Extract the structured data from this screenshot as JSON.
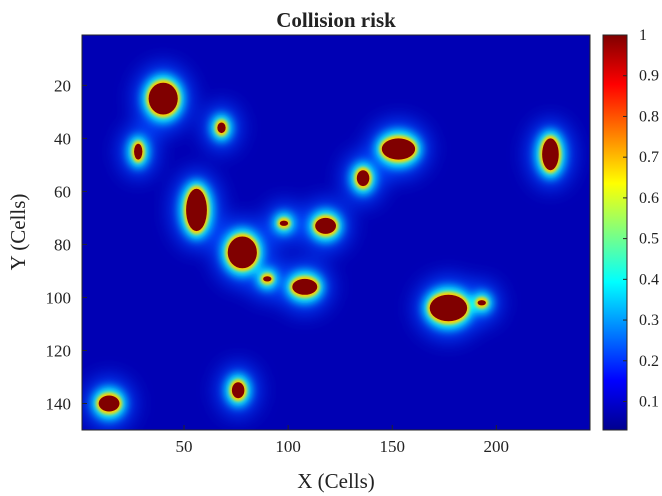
{
  "chart_data": {
    "type": "heatmap",
    "title": "Collision risk",
    "xlabel": "X (Cells)",
    "ylabel": "Y (Cells)",
    "xlim": [
      1,
      245
    ],
    "ylim": [
      1,
      150
    ],
    "y_direction": "reversed",
    "x_ticks": [
      50,
      100,
      150,
      200
    ],
    "x_tick_labels": [
      "50",
      "100",
      "150",
      "200"
    ],
    "y_ticks": [
      20,
      40,
      60,
      80,
      100,
      120,
      140
    ],
    "y_tick_labels": [
      "20",
      "40",
      "60",
      "80",
      "100",
      "120",
      "140"
    ],
    "colorbar": {
      "colormap": "jet",
      "range": [
        0.03,
        1
      ],
      "ticks": [
        0.1,
        0.2,
        0.3,
        0.4,
        0.5,
        0.6,
        0.7,
        0.8,
        0.9,
        1
      ],
      "tick_labels": [
        "0.1",
        "0.2",
        "0.3",
        "0.4",
        "0.5",
        "0.6",
        "0.7",
        "0.8",
        "0.9",
        "1"
      ]
    },
    "background_value": 0.08,
    "obstacles_risk_1": [
      {
        "cx": 40,
        "cy": 25,
        "rx": 7,
        "ry": 6
      },
      {
        "cx": 28,
        "cy": 45,
        "rx": 2,
        "ry": 3
      },
      {
        "cx": 68,
        "cy": 36,
        "rx": 2,
        "ry": 2
      },
      {
        "cx": 56,
        "cy": 67,
        "rx": 5,
        "ry": 8
      },
      {
        "cx": 78,
        "cy": 83,
        "rx": 7,
        "ry": 6
      },
      {
        "cx": 90,
        "cy": 93,
        "rx": 2,
        "ry": 1
      },
      {
        "cx": 98,
        "cy": 72,
        "rx": 2,
        "ry": 1
      },
      {
        "cx": 118,
        "cy": 73,
        "rx": 5,
        "ry": 3
      },
      {
        "cx": 108,
        "cy": 96,
        "rx": 6,
        "ry": 3
      },
      {
        "cx": 136,
        "cy": 55,
        "rx": 3,
        "ry": 3
      },
      {
        "cx": 153,
        "cy": 44,
        "rx": 8,
        "ry": 4
      },
      {
        "cx": 177,
        "cy": 104,
        "rx": 9,
        "ry": 5
      },
      {
        "cx": 193,
        "cy": 102,
        "rx": 2,
        "ry": 1
      },
      {
        "cx": 226,
        "cy": 46,
        "rx": 4,
        "ry": 6
      },
      {
        "cx": 76,
        "cy": 135,
        "rx": 3,
        "ry": 3
      },
      {
        "cx": 14,
        "cy": 140,
        "rx": 5,
        "ry": 3
      }
    ]
  }
}
